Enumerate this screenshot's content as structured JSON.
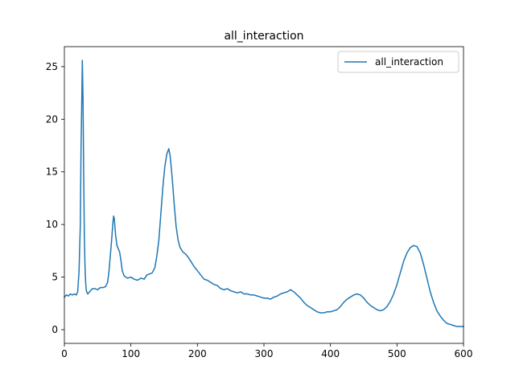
{
  "chart_data": {
    "type": "line",
    "title": "all_interaction",
    "xlabel": "",
    "ylabel": "",
    "xlim": [
      0,
      600
    ],
    "ylim": [
      -1.3,
      26.9
    ],
    "xticks": [
      0,
      100,
      200,
      300,
      400,
      500,
      600
    ],
    "yticks": [
      0,
      5,
      10,
      15,
      20,
      25
    ],
    "grid": false,
    "legend": {
      "position": "top-right",
      "entries": [
        "all_interaction"
      ]
    },
    "series": [
      {
        "name": "all_interaction",
        "color": "#1f77b4",
        "points": [
          [
            0,
            3.1
          ],
          [
            3,
            3.3
          ],
          [
            6,
            3.2
          ],
          [
            9,
            3.4
          ],
          [
            12,
            3.3
          ],
          [
            15,
            3.4
          ],
          [
            18,
            3.3
          ],
          [
            20,
            3.6
          ],
          [
            22,
            5.5
          ],
          [
            24,
            10.0
          ],
          [
            25,
            17.0
          ],
          [
            26,
            21.0
          ],
          [
            27,
            25.6
          ],
          [
            28,
            22.0
          ],
          [
            29,
            15.0
          ],
          [
            30,
            9.0
          ],
          [
            31,
            6.0
          ],
          [
            32,
            4.5
          ],
          [
            33,
            3.7
          ],
          [
            35,
            3.4
          ],
          [
            38,
            3.6
          ],
          [
            42,
            3.9
          ],
          [
            46,
            3.9
          ],
          [
            50,
            3.8
          ],
          [
            54,
            4.0
          ],
          [
            58,
            4.0
          ],
          [
            62,
            4.1
          ],
          [
            65,
            4.5
          ],
          [
            67,
            5.5
          ],
          [
            69,
            7.0
          ],
          [
            71,
            8.5
          ],
          [
            73,
            10.2
          ],
          [
            74,
            10.8
          ],
          [
            75,
            10.6
          ],
          [
            77,
            9.0
          ],
          [
            79,
            8.0
          ],
          [
            81,
            7.7
          ],
          [
            83,
            7.4
          ],
          [
            85,
            6.6
          ],
          [
            87,
            5.6
          ],
          [
            90,
            5.1
          ],
          [
            95,
            4.9
          ],
          [
            100,
            5.0
          ],
          [
            105,
            4.8
          ],
          [
            110,
            4.7
          ],
          [
            115,
            4.9
          ],
          [
            120,
            4.8
          ],
          [
            124,
            5.2
          ],
          [
            128,
            5.3
          ],
          [
            132,
            5.4
          ],
          [
            136,
            5.9
          ],
          [
            139,
            7.0
          ],
          [
            142,
            8.5
          ],
          [
            145,
            11.0
          ],
          [
            148,
            13.5
          ],
          [
            151,
            15.5
          ],
          [
            154,
            16.7
          ],
          [
            157,
            17.2
          ],
          [
            159,
            16.5
          ],
          [
            162,
            14.5
          ],
          [
            165,
            12.0
          ],
          [
            168,
            9.8
          ],
          [
            171,
            8.5
          ],
          [
            174,
            7.8
          ],
          [
            178,
            7.4
          ],
          [
            182,
            7.2
          ],
          [
            186,
            6.9
          ],
          [
            190,
            6.5
          ],
          [
            195,
            6.0
          ],
          [
            200,
            5.6
          ],
          [
            205,
            5.2
          ],
          [
            210,
            4.8
          ],
          [
            215,
            4.7
          ],
          [
            220,
            4.5
          ],
          [
            225,
            4.3
          ],
          [
            230,
            4.2
          ],
          [
            235,
            3.9
          ],
          [
            240,
            3.8
          ],
          [
            245,
            3.9
          ],
          [
            250,
            3.7
          ],
          [
            255,
            3.6
          ],
          [
            260,
            3.5
          ],
          [
            265,
            3.6
          ],
          [
            270,
            3.4
          ],
          [
            275,
            3.4
          ],
          [
            280,
            3.3
          ],
          [
            285,
            3.3
          ],
          [
            290,
            3.2
          ],
          [
            295,
            3.1
          ],
          [
            300,
            3.0
          ],
          [
            305,
            3.0
          ],
          [
            310,
            2.9
          ],
          [
            315,
            3.1
          ],
          [
            320,
            3.2
          ],
          [
            325,
            3.4
          ],
          [
            330,
            3.5
          ],
          [
            335,
            3.6
          ],
          [
            340,
            3.8
          ],
          [
            345,
            3.6
          ],
          [
            350,
            3.3
          ],
          [
            355,
            3.0
          ],
          [
            360,
            2.6
          ],
          [
            365,
            2.3
          ],
          [
            370,
            2.1
          ],
          [
            375,
            1.9
          ],
          [
            380,
            1.7
          ],
          [
            385,
            1.6
          ],
          [
            390,
            1.6
          ],
          [
            395,
            1.7
          ],
          [
            400,
            1.7
          ],
          [
            405,
            1.8
          ],
          [
            410,
            1.9
          ],
          [
            415,
            2.2
          ],
          [
            420,
            2.6
          ],
          [
            425,
            2.9
          ],
          [
            430,
            3.1
          ],
          [
            435,
            3.3
          ],
          [
            440,
            3.4
          ],
          [
            445,
            3.3
          ],
          [
            450,
            3.0
          ],
          [
            455,
            2.6
          ],
          [
            460,
            2.3
          ],
          [
            465,
            2.1
          ],
          [
            470,
            1.9
          ],
          [
            475,
            1.8
          ],
          [
            480,
            1.9
          ],
          [
            485,
            2.2
          ],
          [
            490,
            2.7
          ],
          [
            495,
            3.4
          ],
          [
            500,
            4.3
          ],
          [
            505,
            5.4
          ],
          [
            510,
            6.5
          ],
          [
            515,
            7.3
          ],
          [
            520,
            7.8
          ],
          [
            525,
            8.0
          ],
          [
            530,
            7.9
          ],
          [
            535,
            7.3
          ],
          [
            540,
            6.2
          ],
          [
            545,
            4.9
          ],
          [
            550,
            3.6
          ],
          [
            555,
            2.6
          ],
          [
            560,
            1.8
          ],
          [
            565,
            1.3
          ],
          [
            570,
            0.9
          ],
          [
            575,
            0.6
          ],
          [
            580,
            0.5
          ],
          [
            585,
            0.4
          ],
          [
            590,
            0.3
          ],
          [
            595,
            0.3
          ],
          [
            600,
            0.3
          ]
        ]
      }
    ]
  }
}
